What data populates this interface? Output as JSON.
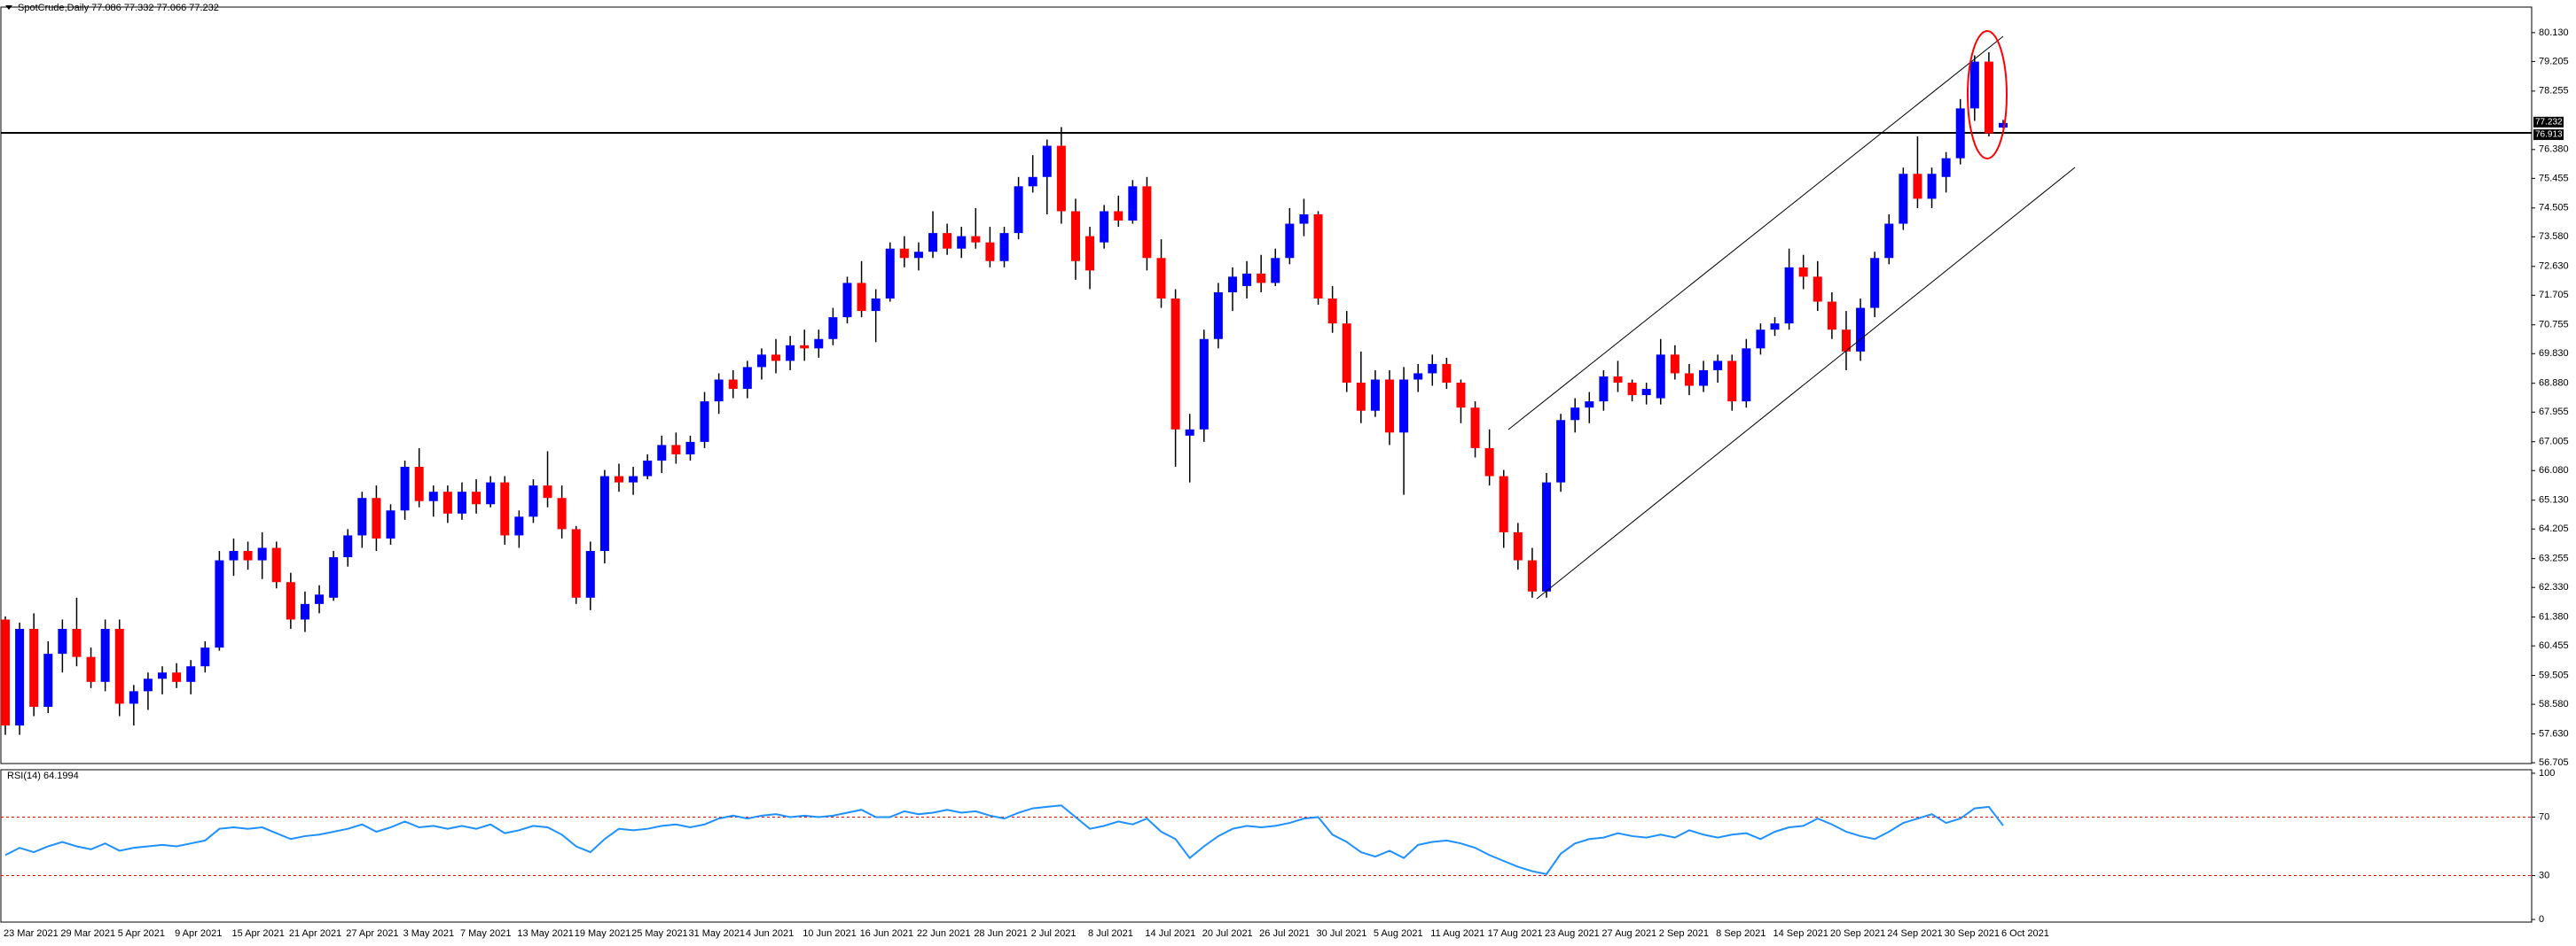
{
  "chart_data": [
    {
      "type": "candlestick",
      "title": "SpotCrude,Daily  77.086 77.332 77.066 77.232",
      "up_color": "#0000ff",
      "down_color": "#ff0000",
      "wick_color": "#000000",
      "ylim": [
        56.68,
        80.95
      ],
      "yticks": [
        {
          "value": 80.13,
          "label": "80.130"
        },
        79.205,
        78.255,
        {
          "value": 76.38,
          "label": "76.380"
        },
        75.455,
        74.505,
        {
          "value": 73.58,
          "label": "73.580"
        },
        {
          "value": 72.63,
          "label": "72.630"
        },
        71.705,
        70.755,
        {
          "value": 69.83,
          "label": "69.830"
        },
        {
          "value": 68.88,
          "label": "68.880"
        },
        67.955,
        67.005,
        {
          "value": 66.08,
          "label": "66.080"
        },
        {
          "value": 65.13,
          "label": "65.130"
        },
        64.205,
        63.255,
        {
          "value": 62.33,
          "label": "62.330"
        },
        {
          "value": 61.38,
          "label": "61.380"
        },
        60.455,
        59.505,
        {
          "value": 58.58,
          "label": "58.580"
        },
        {
          "value": 57.63,
          "label": "57.630"
        },
        56.705
      ],
      "hline": 76.913,
      "price_label": 77.232,
      "categories": [
        "23 Mar 2021",
        null,
        null,
        null,
        "29 Mar 2021",
        null,
        null,
        null,
        "5 Apr 2021",
        null,
        null,
        null,
        "9 Apr 2021",
        null,
        null,
        null,
        "15 Apr 2021",
        null,
        null,
        null,
        "21 Apr 2021",
        null,
        null,
        null,
        "27 Apr 2021",
        null,
        null,
        null,
        "3 May 2021",
        null,
        null,
        null,
        "7 May 2021",
        null,
        null,
        null,
        "13 May 2021",
        null,
        null,
        null,
        "19 May 2021",
        null,
        null,
        null,
        "25 May 2021",
        null,
        null,
        null,
        "31 May 2021",
        null,
        null,
        null,
        "4 Jun 2021",
        null,
        null,
        null,
        "10 Jun 2021",
        null,
        null,
        null,
        "16 Jun 2021",
        null,
        null,
        null,
        "22 Jun 2021",
        null,
        null,
        null,
        "28 Jun 2021",
        null,
        null,
        null,
        "2 Jul 2021",
        null,
        null,
        null,
        "8 Jul 2021",
        null,
        null,
        null,
        "14 Jul 2021",
        null,
        null,
        null,
        "20 Jul 2021",
        null,
        null,
        null,
        "26 Jul 2021",
        null,
        null,
        null,
        "30 Jul 2021",
        null,
        null,
        null,
        "5 Aug 2021",
        null,
        null,
        null,
        "11 Aug 2021",
        null,
        null,
        null,
        "17 Aug 2021",
        null,
        null,
        null,
        "23 Aug 2021",
        null,
        null,
        null,
        "27 Aug 2021",
        null,
        null,
        null,
        "2 Sep 2021",
        null,
        null,
        null,
        "8 Sep 2021",
        null,
        null,
        null,
        "14 Sep 2021",
        null,
        null,
        null,
        "20 Sep 2021",
        null,
        null,
        null,
        "24 Sep 2021",
        null,
        null,
        null,
        "30 Sep 2021",
        null,
        null,
        null,
        "6 Oct 2021"
      ],
      "values": [
        [
          61.3,
          61.4,
          57.6,
          57.9
        ],
        [
          57.9,
          61.2,
          57.6,
          61.0
        ],
        [
          61.0,
          61.5,
          58.2,
          58.5
        ],
        [
          58.5,
          60.6,
          58.3,
          60.2
        ],
        [
          60.2,
          61.3,
          59.6,
          61.0
        ],
        [
          61.0,
          62.0,
          59.8,
          60.1
        ],
        [
          60.1,
          60.4,
          59.1,
          59.3
        ],
        [
          59.3,
          61.3,
          59.0,
          61.0
        ],
        [
          61.0,
          61.3,
          58.2,
          58.6
        ],
        [
          58.6,
          59.2,
          57.9,
          59.0
        ],
        [
          59.0,
          59.6,
          58.4,
          59.4
        ],
        [
          59.4,
          59.8,
          58.9,
          59.6
        ],
        [
          59.6,
          59.9,
          59.1,
          59.3
        ],
        [
          59.3,
          60.0,
          58.9,
          59.8
        ],
        [
          59.8,
          60.6,
          59.6,
          60.4
        ],
        [
          60.4,
          63.5,
          60.3,
          63.2
        ],
        [
          63.2,
          63.9,
          62.7,
          63.5
        ],
        [
          63.5,
          63.8,
          62.9,
          63.2
        ],
        [
          63.2,
          64.1,
          62.6,
          63.6
        ],
        [
          63.6,
          63.8,
          62.3,
          62.5
        ],
        [
          62.5,
          62.8,
          61.0,
          61.3
        ],
        [
          61.3,
          62.2,
          60.9,
          61.8
        ],
        [
          61.8,
          62.4,
          61.5,
          62.1
        ],
        [
          62.0,
          63.5,
          61.9,
          63.3
        ],
        [
          63.3,
          64.2,
          63.0,
          64.0
        ],
        [
          64.0,
          65.4,
          63.6,
          65.2
        ],
        [
          65.2,
          65.6,
          63.5,
          63.9
        ],
        [
          63.9,
          65.0,
          63.7,
          64.8
        ],
        [
          64.8,
          66.4,
          64.5,
          66.2
        ],
        [
          66.2,
          66.8,
          64.9,
          65.1
        ],
        [
          65.1,
          65.6,
          64.6,
          65.4
        ],
        [
          65.4,
          65.6,
          64.4,
          64.7
        ],
        [
          64.7,
          65.7,
          64.5,
          65.4
        ],
        [
          65.4,
          65.8,
          64.7,
          65.0
        ],
        [
          65.0,
          65.9,
          64.9,
          65.7
        ],
        [
          65.7,
          65.9,
          63.7,
          64.0
        ],
        [
          64.0,
          64.8,
          63.6,
          64.6
        ],
        [
          64.6,
          65.8,
          64.4,
          65.6
        ],
        [
          65.6,
          66.7,
          64.9,
          65.2
        ],
        [
          65.2,
          65.6,
          63.9,
          64.2
        ],
        [
          64.2,
          64.3,
          61.8,
          62.0
        ],
        [
          62.0,
          63.8,
          61.6,
          63.5
        ],
        [
          63.5,
          66.1,
          63.1,
          65.9
        ],
        [
          65.9,
          66.3,
          65.4,
          65.7
        ],
        [
          65.7,
          66.2,
          65.3,
          65.9
        ],
        [
          65.9,
          66.6,
          65.8,
          66.4
        ],
        [
          66.4,
          67.2,
          66.0,
          66.9
        ],
        [
          66.9,
          67.3,
          66.3,
          66.6
        ],
        [
          66.6,
          67.2,
          66.4,
          67.0
        ],
        [
          67.0,
          68.6,
          66.8,
          68.3
        ],
        [
          68.3,
          69.2,
          67.9,
          69.0
        ],
        [
          69.0,
          69.3,
          68.4,
          68.7
        ],
        [
          68.7,
          69.6,
          68.4,
          69.4
        ],
        [
          69.4,
          70.0,
          69.0,
          69.8
        ],
        [
          69.8,
          70.3,
          69.2,
          69.6
        ],
        [
          69.6,
          70.4,
          69.3,
          70.1
        ],
        [
          70.1,
          70.6,
          69.6,
          70.0
        ],
        [
          70.0,
          70.6,
          69.7,
          70.3
        ],
        [
          70.3,
          71.3,
          70.1,
          71.0
        ],
        [
          71.0,
          72.3,
          70.8,
          72.1
        ],
        [
          72.1,
          72.8,
          71.0,
          71.2
        ],
        [
          71.2,
          71.9,
          70.2,
          71.6
        ],
        [
          71.6,
          73.4,
          71.5,
          73.2
        ],
        [
          73.2,
          73.6,
          72.6,
          72.9
        ],
        [
          72.9,
          73.4,
          72.5,
          73.1
        ],
        [
          73.1,
          74.4,
          72.9,
          73.7
        ],
        [
          73.7,
          74.0,
          73.0,
          73.2
        ],
        [
          73.2,
          73.9,
          72.9,
          73.6
        ],
        [
          73.6,
          74.5,
          73.2,
          73.4
        ],
        [
          73.4,
          73.9,
          72.6,
          72.8
        ],
        [
          72.8,
          73.9,
          72.6,
          73.7
        ],
        [
          73.7,
          75.5,
          73.5,
          75.2
        ],
        [
          75.2,
          76.2,
          75.0,
          75.5
        ],
        [
          75.5,
          76.7,
          74.3,
          76.5
        ],
        [
          76.5,
          77.1,
          74.0,
          74.4
        ],
        [
          74.4,
          74.8,
          72.2,
          72.8
        ],
        [
          73.6,
          73.9,
          71.9,
          72.5
        ],
        [
          73.4,
          74.6,
          73.2,
          74.4
        ],
        [
          74.4,
          74.9,
          73.9,
          74.1
        ],
        [
          74.1,
          75.4,
          74.0,
          75.2
        ],
        [
          75.2,
          75.5,
          72.5,
          72.9
        ],
        [
          72.9,
          73.5,
          71.3,
          71.6
        ],
        [
          71.6,
          71.9,
          66.2,
          67.4
        ],
        [
          67.2,
          67.9,
          65.7,
          67.4
        ],
        [
          67.4,
          70.6,
          67.0,
          70.3
        ],
        [
          70.3,
          72.1,
          70.0,
          71.8
        ],
        [
          71.8,
          72.6,
          71.2,
          72.3
        ],
        [
          72.0,
          72.8,
          71.6,
          72.4
        ],
        [
          72.4,
          73.0,
          71.8,
          72.1
        ],
        [
          72.1,
          73.2,
          72.0,
          72.9
        ],
        [
          72.9,
          74.5,
          72.7,
          74.0
        ],
        [
          74.0,
          74.8,
          73.6,
          74.3
        ],
        [
          74.3,
          74.4,
          71.4,
          71.6
        ],
        [
          71.6,
          72.0,
          70.5,
          70.8
        ],
        [
          70.8,
          71.2,
          68.6,
          68.9
        ],
        [
          68.9,
          69.9,
          67.6,
          68.0
        ],
        [
          68.0,
          69.3,
          67.8,
          69.0
        ],
        [
          69.0,
          69.3,
          66.9,
          67.3
        ],
        [
          67.3,
          69.4,
          65.3,
          69.0
        ],
        [
          69.0,
          69.5,
          68.6,
          69.2
        ],
        [
          69.2,
          69.8,
          68.8,
          69.5
        ],
        [
          69.5,
          69.7,
          68.7,
          68.9
        ],
        [
          68.9,
          69.0,
          67.6,
          68.1
        ],
        [
          68.1,
          68.3,
          66.5,
          66.8
        ],
        [
          66.8,
          67.4,
          65.6,
          65.9
        ],
        [
          65.9,
          66.1,
          63.6,
          64.1
        ],
        [
          64.1,
          64.4,
          62.9,
          63.2
        ],
        [
          63.2,
          63.6,
          62.0,
          62.2
        ],
        [
          62.2,
          66.0,
          62.0,
          65.7
        ],
        [
          65.7,
          67.9,
          65.4,
          67.7
        ],
        [
          67.7,
          68.4,
          67.3,
          68.1
        ],
        [
          68.1,
          68.6,
          67.6,
          68.3
        ],
        [
          68.3,
          69.3,
          68.0,
          69.1
        ],
        [
          69.1,
          69.6,
          68.6,
          68.9
        ],
        [
          68.9,
          69.0,
          68.3,
          68.5
        ],
        [
          68.5,
          68.9,
          68.2,
          68.7
        ],
        [
          68.4,
          70.3,
          68.2,
          69.8
        ],
        [
          69.8,
          70.1,
          69.0,
          69.2
        ],
        [
          69.2,
          69.5,
          68.5,
          68.8
        ],
        [
          68.8,
          69.6,
          68.6,
          69.3
        ],
        [
          69.3,
          69.8,
          68.9,
          69.6
        ],
        [
          69.6,
          69.8,
          68.0,
          68.3
        ],
        [
          68.3,
          70.3,
          68.1,
          70.0
        ],
        [
          70.0,
          70.8,
          69.8,
          70.6
        ],
        [
          70.6,
          71.0,
          70.4,
          70.8
        ],
        [
          70.8,
          73.2,
          70.6,
          72.6
        ],
        [
          72.6,
          73.0,
          71.9,
          72.3
        ],
        [
          72.3,
          72.8,
          71.2,
          71.5
        ],
        [
          71.5,
          71.8,
          70.3,
          70.6
        ],
        [
          70.6,
          71.2,
          69.3,
          69.9
        ],
        [
          69.9,
          71.6,
          69.6,
          71.3
        ],
        [
          71.3,
          73.1,
          71.0,
          72.9
        ],
        [
          72.9,
          74.3,
          72.7,
          74.0
        ],
        [
          74.0,
          75.8,
          73.8,
          75.6
        ],
        [
          75.6,
          76.8,
          74.5,
          74.8
        ],
        [
          74.8,
          75.8,
          74.5,
          75.6
        ],
        [
          75.5,
          76.3,
          75.0,
          76.1
        ],
        [
          76.1,
          78.0,
          75.9,
          77.7
        ],
        [
          77.7,
          79.4,
          77.3,
          79.2
        ],
        [
          79.2,
          79.5,
          76.8,
          76.9
        ],
        [
          77.086,
          77.332,
          77.066,
          77.232
        ]
      ]
    },
    {
      "type": "line",
      "title": "RSI(14) 64.1994",
      "color": "#1e90ff",
      "level_color": "#ff0000",
      "ylim": [
        -1.8,
        102.4
      ],
      "yticks": [
        100,
        70,
        30,
        0
      ],
      "levels": [
        70,
        30
      ],
      "values": [
        44,
        49,
        46,
        50,
        53,
        50,
        48,
        52,
        47,
        49,
        50,
        51,
        50,
        52,
        54,
        62,
        63,
        62,
        63,
        59,
        55,
        57,
        58,
        60,
        62,
        65,
        60,
        63,
        67,
        63,
        64,
        62,
        64,
        62,
        65,
        59,
        61,
        64,
        63,
        58,
        50,
        46,
        55,
        62,
        61,
        62,
        64,
        65,
        63,
        65,
        69,
        71,
        69,
        71,
        72,
        70,
        71,
        70,
        71,
        73,
        75,
        70,
        70,
        74,
        72,
        73,
        75,
        73,
        74,
        71,
        69,
        73,
        76,
        77,
        78,
        70,
        62,
        64,
        67,
        65,
        69,
        60,
        55,
        42,
        50,
        57,
        62,
        64,
        63,
        64,
        66,
        69,
        70,
        58,
        53,
        46,
        43,
        47,
        42,
        51,
        53,
        54,
        52,
        49,
        44,
        40,
        36,
        33,
        31,
        45,
        52,
        55,
        56,
        59,
        57,
        56,
        58,
        56,
        61,
        58,
        56,
        58,
        59,
        55,
        60,
        63,
        64,
        69,
        65,
        60,
        57,
        55,
        60,
        66,
        69,
        72,
        66,
        69,
        76,
        77,
        64.1994
      ]
    }
  ]
}
